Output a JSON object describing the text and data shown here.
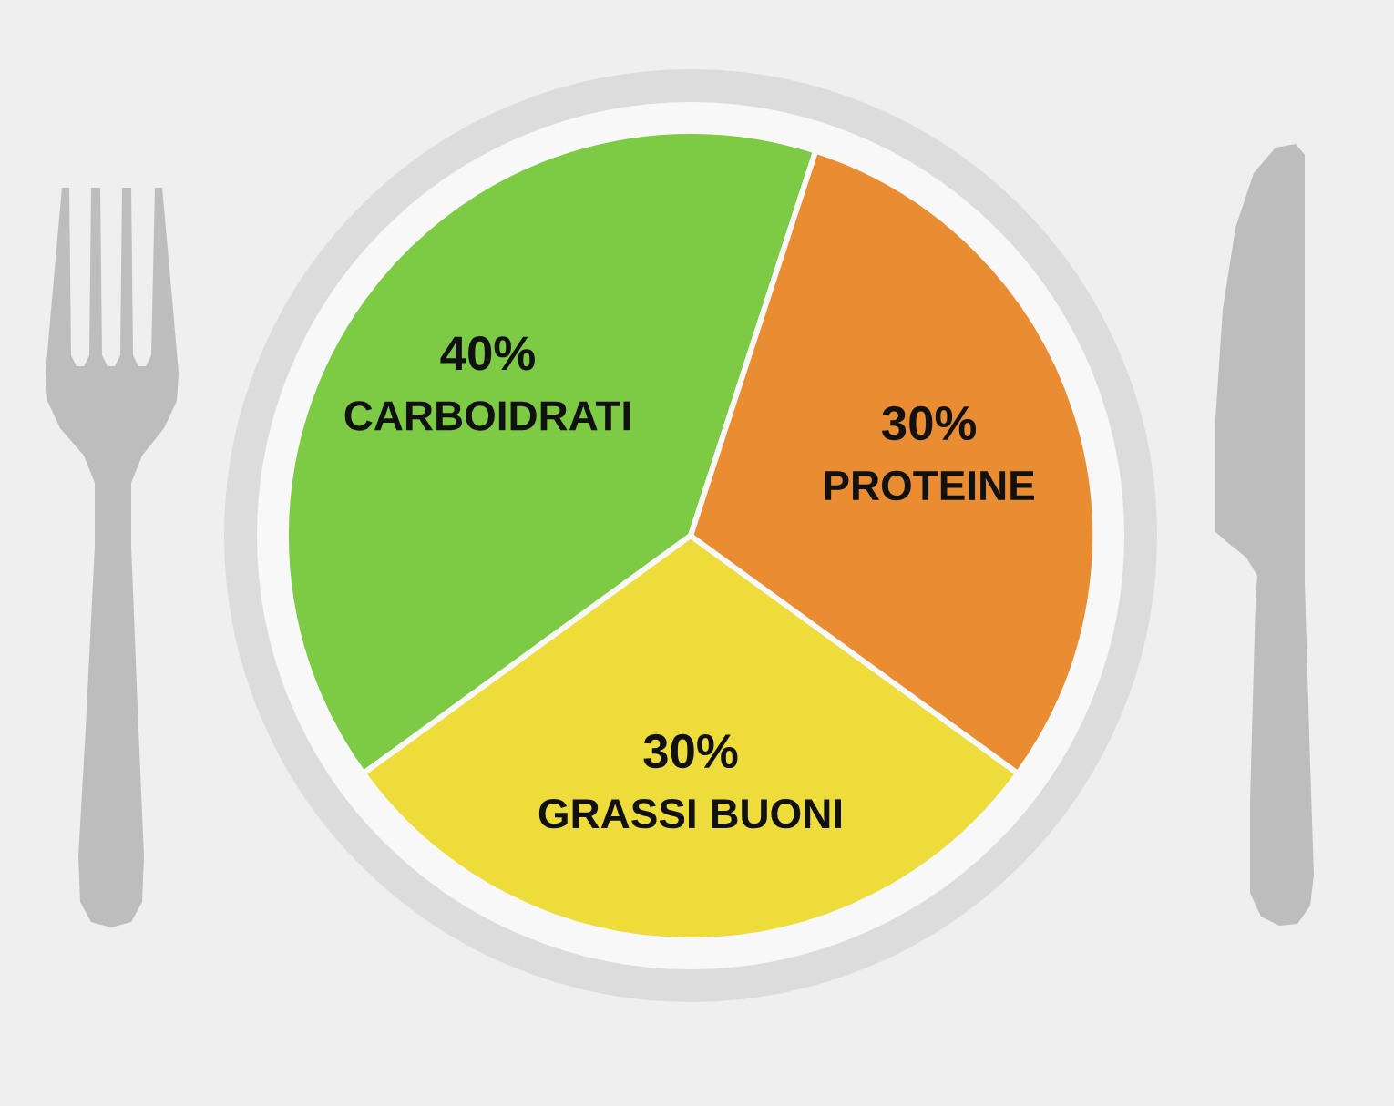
{
  "chart_data": {
    "type": "pie",
    "categories": [
      "CARBOIDRATI",
      "GRASSI BUONI",
      "PROTEINE"
    ],
    "values": [
      40,
      30,
      30
    ],
    "colors": [
      "#7dca45",
      "#eedc3a",
      "#e98c32"
    ],
    "value_labels": [
      "40%",
      "30%",
      "30%"
    ]
  }
}
